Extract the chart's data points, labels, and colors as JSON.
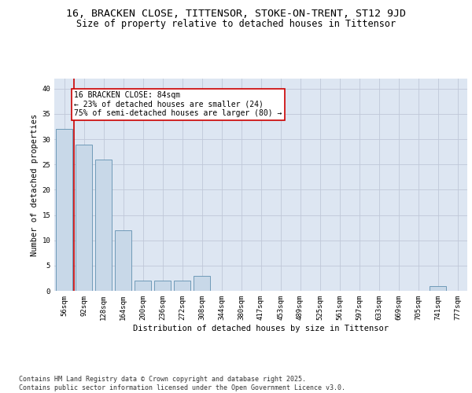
{
  "title": "16, BRACKEN CLOSE, TITTENSOR, STOKE-ON-TRENT, ST12 9JD",
  "subtitle": "Size of property relative to detached houses in Tittensor",
  "xlabel": "Distribution of detached houses by size in Tittensor",
  "ylabel": "Number of detached properties",
  "categories": [
    "56sqm",
    "92sqm",
    "128sqm",
    "164sqm",
    "200sqm",
    "236sqm",
    "272sqm",
    "308sqm",
    "344sqm",
    "380sqm",
    "417sqm",
    "453sqm",
    "489sqm",
    "525sqm",
    "561sqm",
    "597sqm",
    "633sqm",
    "669sqm",
    "705sqm",
    "741sqm",
    "777sqm"
  ],
  "values": [
    32,
    29,
    26,
    12,
    2,
    2,
    2,
    3,
    0,
    0,
    0,
    0,
    0,
    0,
    0,
    0,
    0,
    0,
    0,
    1,
    0
  ],
  "bar_color": "#c8d8e8",
  "bar_edge_color": "#6090b0",
  "grid_color": "#c0c8d8",
  "background_color": "#dde6f2",
  "vline_color": "#cc0000",
  "annotation_text": "16 BRACKEN CLOSE: 84sqm\n← 23% of detached houses are smaller (24)\n75% of semi-detached houses are larger (80) →",
  "annotation_box_color": "#ffffff",
  "annotation_box_edge": "#cc0000",
  "ylim": [
    0,
    42
  ],
  "yticks": [
    0,
    5,
    10,
    15,
    20,
    25,
    30,
    35,
    40
  ],
  "footer_text": "Contains HM Land Registry data © Crown copyright and database right 2025.\nContains public sector information licensed under the Open Government Licence v3.0.",
  "title_fontsize": 9.5,
  "subtitle_fontsize": 8.5,
  "axis_label_fontsize": 7.5,
  "tick_fontsize": 6.5,
  "annotation_fontsize": 7,
  "footer_fontsize": 6
}
